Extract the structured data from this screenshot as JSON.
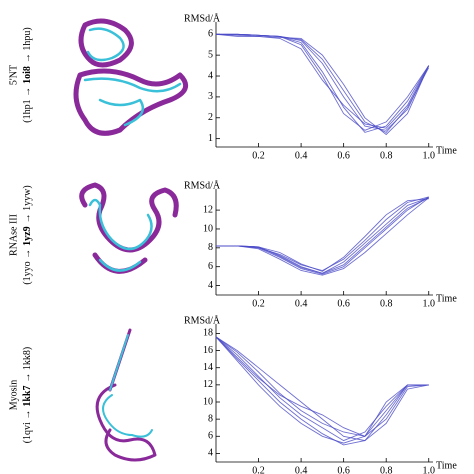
{
  "chart_data": [
    {
      "type": "line",
      "panel_label": "5'NT",
      "panel_ids": [
        "(1hp1 →",
        "1oi8",
        "→ 1hpu)"
      ],
      "y_label": "RMSd/Å",
      "x_label": "Time",
      "x": [
        0,
        0.1,
        0.2,
        0.3,
        0.4,
        0.5,
        0.6,
        0.7,
        0.8,
        0.9,
        1
      ],
      "xlim": [
        0,
        1.02
      ],
      "ylim": [
        0.6,
        6.3
      ],
      "xticks": [
        0.2,
        0.4,
        0.6,
        0.8,
        {
          "value": 1,
          "label": "1.0"
        }
      ],
      "yticks": [
        1,
        2,
        3,
        4,
        5,
        6
      ],
      "series": [
        {
          "color": "#4b4bc8",
          "values": [
            6,
            6,
            5.95,
            5.9,
            5.7,
            4.6,
            3.0,
            1.6,
            1.4,
            2.4,
            4.5
          ]
        },
        {
          "color": "#4b4bc8",
          "values": [
            6,
            6,
            5.95,
            5.9,
            5.6,
            4.2,
            2.5,
            1.3,
            1.6,
            2.8,
            4.5
          ]
        },
        {
          "color": "#4b4bc8",
          "values": [
            6,
            5.95,
            5.9,
            5.85,
            5.8,
            5.0,
            3.6,
            2.0,
            1.2,
            2.2,
            4.5
          ]
        },
        {
          "color": "#4b4bc8",
          "values": [
            6,
            6,
            5.95,
            5.9,
            5.5,
            4.0,
            2.2,
            1.4,
            1.8,
            3.0,
            4.5
          ]
        },
        {
          "color": "#4b4bc8",
          "values": [
            6,
            6,
            5.95,
            5.9,
            5.75,
            4.8,
            3.3,
            1.8,
            1.3,
            2.5,
            4.4
          ]
        },
        {
          "color": "#4b4bc8",
          "values": [
            6,
            5.9,
            5.9,
            5.8,
            5.3,
            3.8,
            2.6,
            1.7,
            1.5,
            2.6,
            4.5
          ]
        }
      ]
    },
    {
      "type": "line",
      "panel_label": "RNAse III",
      "panel_ids": [
        "(1yyo →",
        "1yz9",
        "→ 1yyw)"
      ],
      "y_label": "RMSd/Å",
      "x_label": "Time",
      "x": [
        0,
        0.1,
        0.2,
        0.3,
        0.4,
        0.5,
        0.6,
        0.7,
        0.8,
        0.9,
        1
      ],
      "xlim": [
        0,
        1.02
      ],
      "ylim": [
        3,
        13.6
      ],
      "xticks": [
        0.2,
        0.4,
        0.6,
        0.8,
        {
          "value": 1,
          "label": "1.0"
        }
      ],
      "yticks": [
        4,
        6,
        8,
        10,
        12
      ],
      "series": [
        {
          "color": "#4b4bc8",
          "values": [
            8.2,
            8.2,
            8.1,
            7.2,
            6.0,
            5.3,
            6.5,
            8.5,
            10.5,
            12.5,
            13.3
          ]
        },
        {
          "color": "#4b4bc8",
          "values": [
            8.2,
            8.2,
            8.0,
            7.0,
            5.8,
            5.2,
            6.0,
            8.0,
            10.0,
            12.0,
            13.4
          ]
        },
        {
          "color": "#4b4bc8",
          "values": [
            8.2,
            8.2,
            8.1,
            7.5,
            6.3,
            5.5,
            7.0,
            9.2,
            11.5,
            13.0,
            13.2
          ]
        },
        {
          "color": "#4b4bc8",
          "values": [
            8.2,
            8.2,
            7.9,
            6.8,
            5.6,
            5.1,
            5.8,
            7.5,
            9.5,
            11.5,
            13.3
          ]
        },
        {
          "color": "#4b4bc8",
          "values": [
            8.2,
            8.2,
            8.0,
            7.3,
            6.2,
            5.6,
            6.8,
            8.8,
            11.0,
            12.8,
            13.4
          ]
        },
        {
          "color": "#4b4bc8",
          "values": [
            8.2,
            8.2,
            8.1,
            7.1,
            5.9,
            5.3,
            6.2,
            8.2,
            10.2,
            12.2,
            13.3
          ]
        }
      ]
    },
    {
      "type": "line",
      "panel_label": "Myosin",
      "panel_ids": [
        "(1qvi →",
        "1kk7",
        "→ 1kk8)"
      ],
      "y_label": "RMSd/Å",
      "x_label": "Time",
      "x": [
        0,
        0.1,
        0.2,
        0.3,
        0.4,
        0.5,
        0.6,
        0.7,
        0.8,
        0.9,
        1
      ],
      "xlim": [
        0,
        1.02
      ],
      "ylim": [
        3,
        18.4
      ],
      "xticks": [
        0.2,
        0.4,
        0.6,
        0.8,
        {
          "value": 1,
          "label": "1.0"
        }
      ],
      "yticks": [
        4,
        6,
        8,
        10,
        12,
        14,
        16,
        18
      ],
      "series": [
        {
          "color": "#4b4bc8",
          "values": [
            17.6,
            15.5,
            13.0,
            10.5,
            8.5,
            7.0,
            5.5,
            6.5,
            9.5,
            12,
            12
          ]
        },
        {
          "color": "#4b4bc8",
          "values": [
            17.6,
            15.0,
            12.5,
            10.0,
            8.0,
            6.3,
            5.0,
            5.5,
            8.5,
            12,
            12
          ]
        },
        {
          "color": "#4b4bc8",
          "values": [
            17.6,
            16.0,
            14.0,
            12.0,
            10.0,
            8.0,
            6.0,
            5.5,
            7.5,
            11.5,
            12
          ]
        },
        {
          "color": "#4b4bc8",
          "values": [
            17.6,
            14.8,
            12.0,
            9.5,
            7.5,
            6.0,
            5.2,
            6.0,
            10.0,
            12,
            12
          ]
        },
        {
          "color": "#4b4bc8",
          "values": [
            17.6,
            15.8,
            13.5,
            11.0,
            9.0,
            7.5,
            6.5,
            6.0,
            9.0,
            12,
            12
          ]
        },
        {
          "color": "#4b4bc8",
          "values": [
            17.6,
            15.2,
            12.8,
            10.8,
            9.5,
            8.5,
            7.0,
            6.0,
            8.0,
            11.8,
            12
          ]
        }
      ]
    }
  ]
}
